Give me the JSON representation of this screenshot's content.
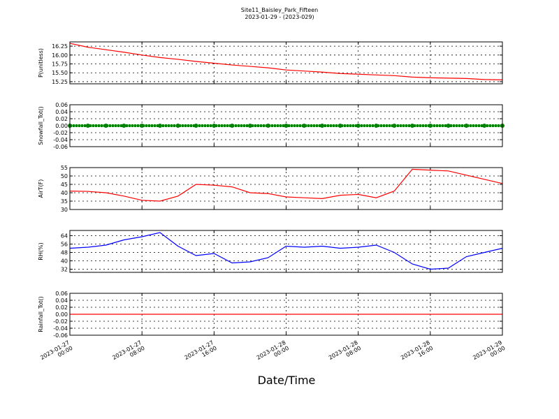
{
  "title": "Site11_Baisley_Park_Fifteen",
  "subtitle": "2023-01-29 - (2023-029)",
  "xlabel": "Date/Time",
  "x": [
    "2023-01-27 00:00",
    "2023-01-27 02:00",
    "2023-01-27 04:00",
    "2023-01-27 06:00",
    "2023-01-27 08:00",
    "2023-01-27 10:00",
    "2023-01-27 12:00",
    "2023-01-27 14:00",
    "2023-01-27 16:00",
    "2023-01-27 18:00",
    "2023-01-27 20:00",
    "2023-01-27 22:00",
    "2023-01-28 00:00",
    "2023-01-28 02:00",
    "2023-01-28 04:00",
    "2023-01-28 06:00",
    "2023-01-28 08:00",
    "2023-01-28 10:00",
    "2023-01-28 12:00",
    "2023-01-28 14:00",
    "2023-01-28 16:00",
    "2023-01-28 18:00",
    "2023-01-28 20:00",
    "2023-01-28 22:00",
    "2023-01-29 00:00"
  ],
  "xlim": [
    "2023-01-27 00:00",
    "2023-01-29 00:00"
  ],
  "xticks": [
    "2023-01-27 00:00",
    "2023-01-27 08:00",
    "2023-01-27 16:00",
    "2023-01-28 00:00",
    "2023-01-28 08:00",
    "2023-01-28 16:00",
    "2023-01-29 00:00"
  ],
  "grid": true,
  "chart_data": [
    {
      "type": "line",
      "ylabel": "P(unitless)",
      "color": "#ff0000",
      "markers": false,
      "ylim": [
        15.19,
        16.37
      ],
      "yticks": [
        15.25,
        {
          "value": 15.5,
          "label": "15.50"
        },
        15.75,
        {
          "value": 16,
          "label": "16.00"
        },
        16.25
      ],
      "values": [
        16.33,
        16.22,
        16.15,
        16.08,
        16.0,
        15.93,
        15.88,
        15.82,
        15.77,
        15.72,
        15.68,
        15.64,
        15.58,
        15.55,
        15.52,
        15.48,
        15.46,
        15.44,
        15.42,
        15.38,
        15.36,
        15.35,
        15.34,
        15.31,
        15.3
      ]
    },
    {
      "type": "line",
      "ylabel": "Snowfall_Tot()",
      "color": "#008000",
      "markers": true,
      "ylim": [
        -0.06,
        0.06
      ],
      "yticks": [
        -0.06,
        -0.04,
        -0.02,
        {
          "value": 0,
          "label": "0.00"
        },
        0.02,
        0.04,
        0.06
      ],
      "values": [
        0,
        0,
        0,
        0,
        0,
        0,
        0,
        0,
        0,
        0,
        0,
        0,
        0,
        0,
        0,
        0,
        0,
        0,
        0,
        0,
        0,
        0,
        0,
        0,
        0
      ]
    },
    {
      "type": "line",
      "ylabel": "AirT(F)",
      "color": "#ff0000",
      "markers": false,
      "ylim": [
        30,
        55
      ],
      "yticks": [
        30,
        35,
        40,
        45,
        50,
        55
      ],
      "values": [
        41,
        40.8,
        40,
        38,
        35.5,
        35,
        38,
        45,
        44.5,
        43.5,
        40,
        39.5,
        37.5,
        37,
        36.5,
        38.5,
        39,
        37,
        41,
        54,
        53.5,
        53,
        50.5,
        48,
        45.5
      ]
    },
    {
      "type": "line",
      "ylabel": "RH(%)",
      "color": "#0000ff",
      "markers": false,
      "ylim": [
        29,
        69
      ],
      "yticks": [
        32,
        40,
        48,
        56,
        64
      ],
      "values": [
        52,
        53,
        55,
        60,
        63,
        67,
        54,
        45,
        47,
        38,
        39,
        43,
        54,
        53,
        54,
        52,
        53,
        55,
        48,
        37,
        32,
        33,
        44,
        48,
        52
      ]
    },
    {
      "type": "line",
      "ylabel": "Rainfall_Tot()",
      "color": "#ff0000",
      "markers": false,
      "ylim": [
        -0.06,
        0.06
      ],
      "yticks": [
        -0.06,
        -0.04,
        -0.02,
        {
          "value": 0,
          "label": "0.00"
        },
        0.02,
        0.04,
        0.06
      ],
      "values": [
        0,
        0,
        0,
        0,
        0,
        0,
        0,
        0,
        0,
        0,
        0,
        0,
        0,
        0,
        0,
        0,
        0,
        0,
        0,
        0,
        0,
        0,
        0,
        0,
        0
      ]
    }
  ]
}
